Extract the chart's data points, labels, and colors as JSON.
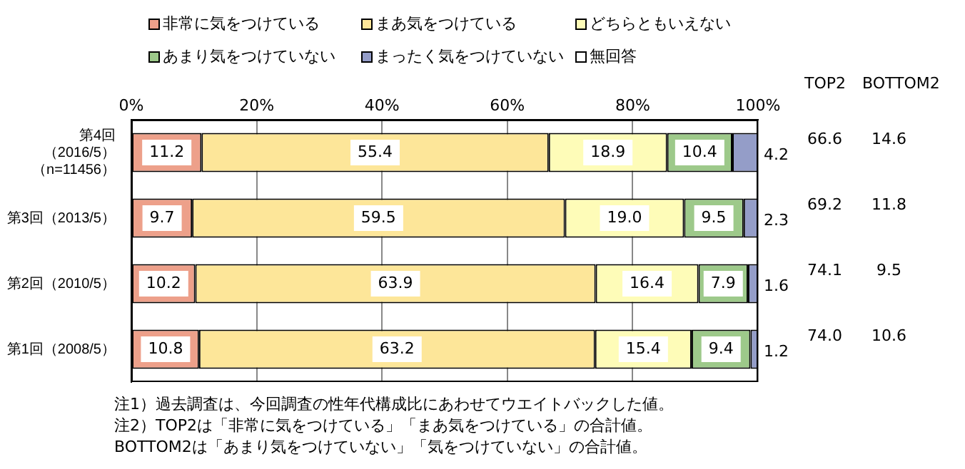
{
  "chart_data": {
    "type": "bar",
    "orientation": "horizontal",
    "stacked": true,
    "categories": [
      "第4回（2016/5）（n=11456）",
      "第3回（2013/5）",
      "第2回（2010/5）",
      "第1回（2008/5）"
    ],
    "series": [
      {
        "name": "非常に気をつけている",
        "color": "#eda08a",
        "values": [
          11.2,
          9.7,
          10.2,
          10.8
        ],
        "value_labels": [
          "11.2",
          "9.7",
          "10.2",
          "10.8"
        ]
      },
      {
        "name": "まあ気をつけている",
        "color": "#fde699",
        "values": [
          55.4,
          59.5,
          63.9,
          63.2
        ],
        "value_labels": [
          "55.4",
          "59.5",
          "63.9",
          "63.2"
        ]
      },
      {
        "name": "どちらともいえない",
        "color": "#fefcb8",
        "values": [
          18.9,
          19.0,
          16.4,
          15.4
        ],
        "value_labels": [
          "18.9",
          "19.0",
          "16.4",
          "15.4"
        ]
      },
      {
        "name": "あまり気をつけていない",
        "color": "#9dc98a",
        "values": [
          10.4,
          9.5,
          7.9,
          9.4
        ],
        "value_labels": [
          "10.4",
          "9.5",
          "7.9",
          "9.4"
        ]
      },
      {
        "name": "まったく気をつけていない",
        "color": "#949dc8",
        "values": [
          4.2,
          2.3,
          1.6,
          1.2
        ],
        "value_labels": [
          "4.2",
          "2.3",
          "1.6",
          "1.2"
        ]
      },
      {
        "name": "無回答",
        "color": "#ffffff",
        "values": [
          null,
          null,
          null,
          null
        ]
      }
    ],
    "xlim": [
      0,
      100
    ],
    "xticks": [
      {
        "value": 0,
        "label": "0%"
      },
      {
        "value": 20,
        "label": "20%"
      },
      {
        "value": 40,
        "label": "40%"
      },
      {
        "value": 60,
        "label": "60%"
      },
      {
        "value": 80,
        "label": "80%"
      },
      {
        "value": 100,
        "label": "100%"
      }
    ],
    "grid": "x",
    "legend": "top",
    "annotations": [
      "TOP2",
      "BOTTOM2",
      "66.6",
      "14.6",
      "69.2",
      "11.8",
      "74.1",
      "9.5",
      "74.0",
      "10.6",
      "注1）過去調査は、今回調査の性年代構成比にあわせてウエイトバックした値。",
      "注2）TOP2は「非常に気をつけている」「まあ気をつけている」の合計値。",
      "BOTTOM2は「あまり気をつけていない」「気をつけていない」の合計値。"
    ]
  }
}
